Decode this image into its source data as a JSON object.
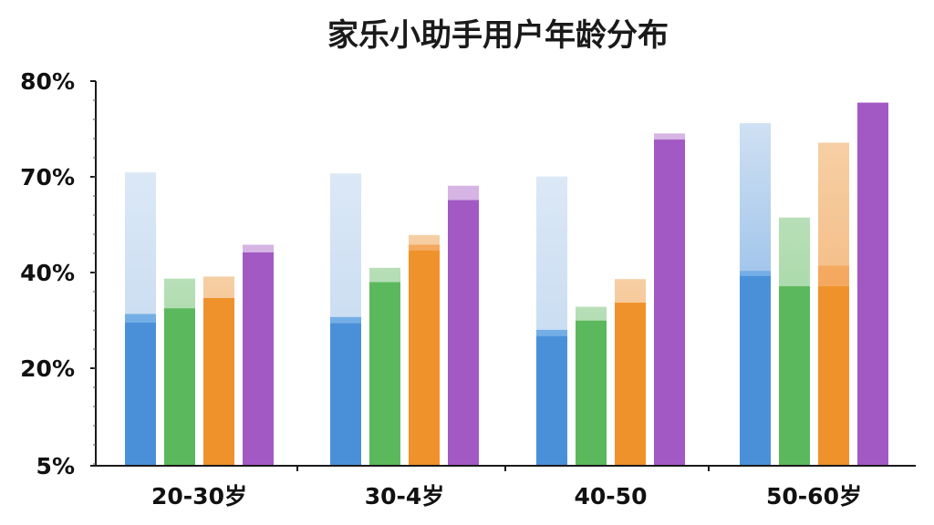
{
  "chart_data": {
    "type": "bar",
    "title": "家乐小助手用户年龄分布",
    "xlabel": "",
    "ylabel": "",
    "categories": [
      "20-30岁",
      "30-4岁",
      "40-50",
      "50-60岁"
    ],
    "y_tick_labels": [
      "5%",
      "20%",
      "40%",
      "70%",
      "80%"
    ],
    "ylim": [
      5,
      80
    ],
    "grid": false,
    "legend": "none",
    "series": [
      {
        "color": "#4a90d9",
        "values": [
          32.9,
          32.8,
          30.3,
          42.0
        ],
        "secondary_values": [
          34.6,
          34.0,
          31.5,
          43.0
        ],
        "ghost_values": [
          62.2,
          62.0,
          61.4,
          71.8
        ]
      },
      {
        "color": "#5cb85c",
        "values": [
          35.7,
          40.8,
          33.3,
          40.0
        ],
        "ghost_values": [
          41.5,
          43.6,
          36.0,
          53.4
        ]
      },
      {
        "color": "#f0922b",
        "values": [
          37.7,
          47.0,
          36.8,
          40.0
        ],
        "secondary_values": [
          37.7,
          48.1,
          36.8,
          44.0
        ],
        "ghost_values": [
          41.9,
          50.0,
          41.4,
          68.0
        ]
      },
      {
        "color": "#a259c4",
        "values": [
          46.6,
          56.8,
          68.6,
          75.8
        ],
        "ghost_values": [
          48.1,
          59.6,
          69.8,
          75.8
        ]
      }
    ]
  }
}
